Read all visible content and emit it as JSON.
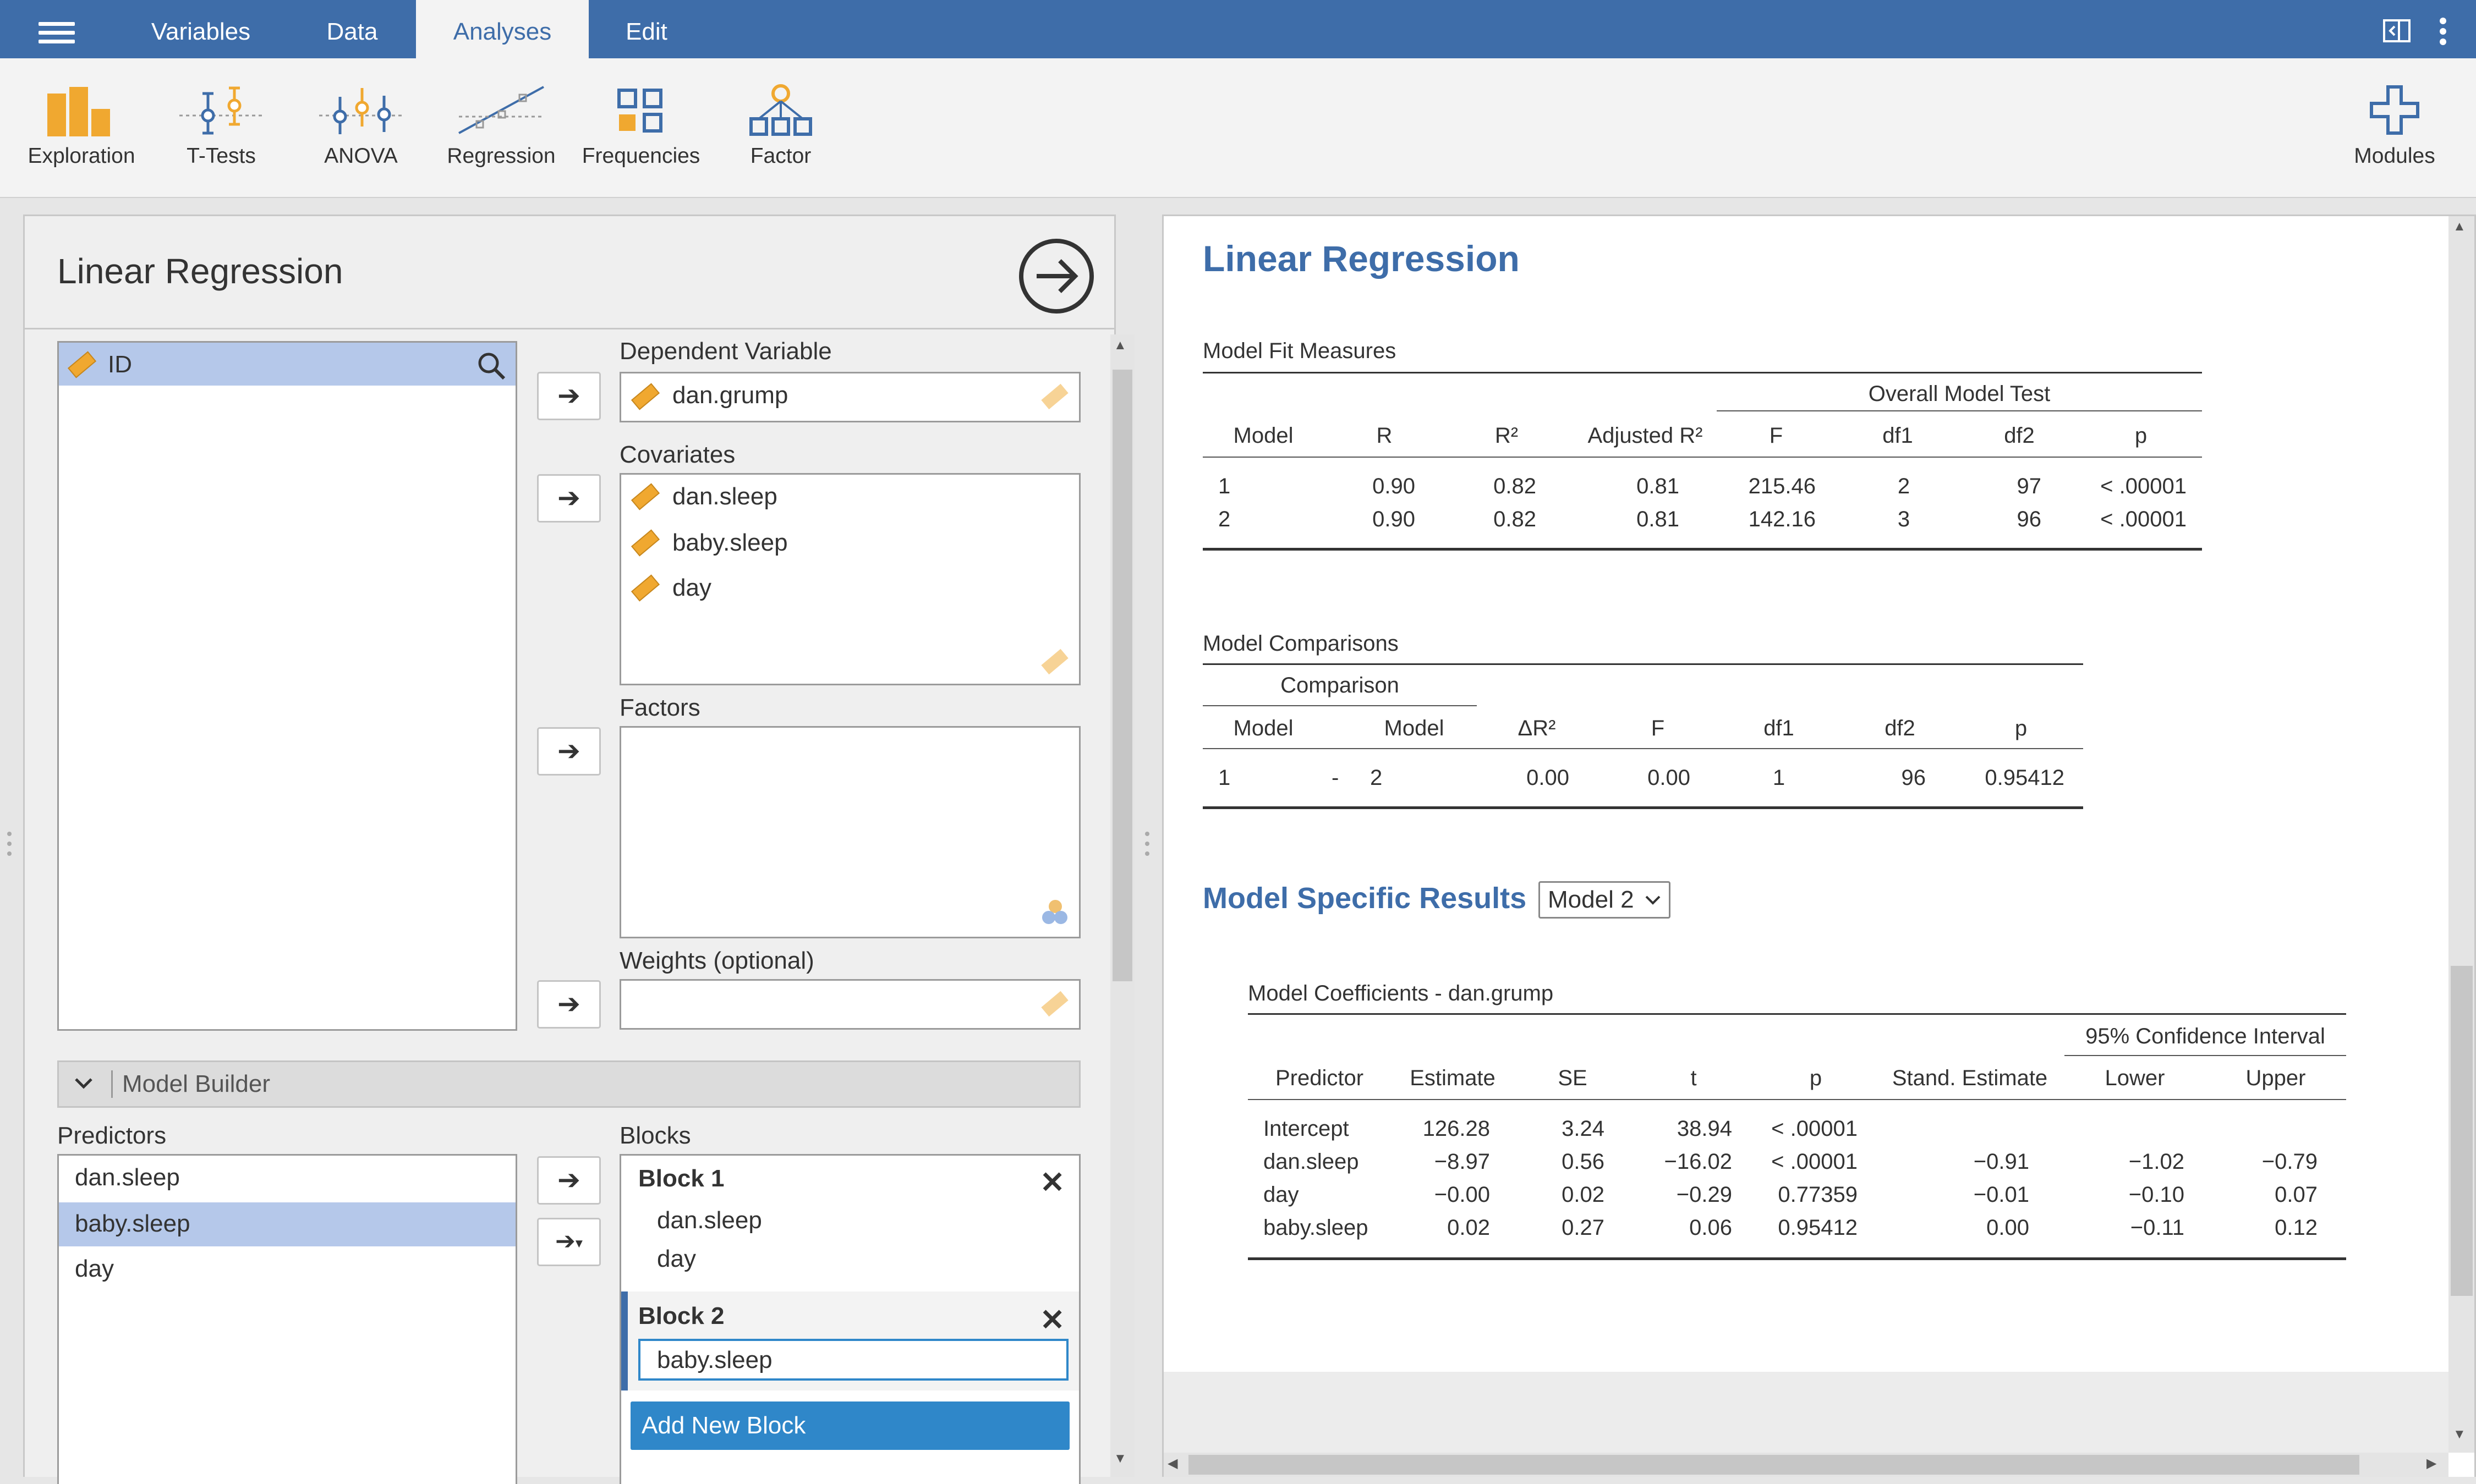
{
  "nav": {
    "tabs": [
      {
        "label": "Variables"
      },
      {
        "label": "Data"
      },
      {
        "label": "Analyses"
      },
      {
        "label": "Edit"
      }
    ]
  },
  "ribbon": {
    "items": [
      {
        "label": "Exploration",
        "icon": "exploration-icon"
      },
      {
        "label": "T-Tests",
        "icon": "t-tests-icon"
      },
      {
        "label": "ANOVA",
        "icon": "anova-icon"
      },
      {
        "label": "Regression",
        "icon": "regression-icon"
      },
      {
        "label": "Frequencies",
        "icon": "frequencies-icon"
      },
      {
        "label": "Factor",
        "icon": "factor-icon"
      }
    ],
    "modules_label": "Modules"
  },
  "options": {
    "title": "Linear Regression",
    "variables": [
      "ID"
    ],
    "dependent_label": "Dependent Variable",
    "dependent_value": "dan.grump",
    "covariates_label": "Covariates",
    "covariates": [
      "dan.sleep",
      "baby.sleep",
      "day"
    ],
    "factors_label": "Factors",
    "weights_label": "Weights (optional)",
    "model_builder_label": "Model Builder",
    "predictors_label": "Predictors",
    "predictors": [
      "dan.sleep",
      "baby.sleep",
      "day"
    ],
    "blocks_label": "Blocks",
    "block1_title": "Block 1",
    "block1_items": [
      "dan.sleep",
      "day"
    ],
    "block2_title": "Block 2",
    "block2_items": [
      "baby.sleep"
    ],
    "add_block_label": "Add New Block"
  },
  "results": {
    "title": "Linear Regression",
    "fit": {
      "caption": "Model Fit Measures",
      "group_header": "Overall Model Test",
      "headers": [
        "Model",
        "R",
        "R²",
        "Adjusted R²",
        "F",
        "df1",
        "df2",
        "p"
      ],
      "rows": [
        [
          "1",
          "0.90",
          "0.82",
          "0.81",
          "215.46",
          "2",
          "97",
          "< .00001"
        ],
        [
          "2",
          "0.90",
          "0.82",
          "0.81",
          "142.16",
          "3",
          "96",
          "< .00001"
        ]
      ]
    },
    "comp": {
      "caption": "Model Comparisons",
      "group_header": "Comparison",
      "headers": [
        "Model",
        "Model",
        "ΔR²",
        "F",
        "df1",
        "df2",
        "p"
      ],
      "row": [
        "1",
        "-",
        "2",
        "0.00",
        "0.00",
        "1",
        "96",
        "0.95412"
      ]
    },
    "specific_title": "Model Specific Results",
    "model_select": "Model 2",
    "coef": {
      "caption": "Model Coefficients - dan.grump",
      "group_header": "95% Confidence Interval",
      "headers": [
        "Predictor",
        "Estimate",
        "SE",
        "t",
        "p",
        "Stand. Estimate",
        "Lower",
        "Upper"
      ],
      "rows": [
        [
          "Intercept",
          "126.28",
          "3.24",
          "38.94",
          "< .00001",
          "",
          "",
          ""
        ],
        [
          "dan.sleep",
          "−8.97",
          "0.56",
          "−16.02",
          "< .00001",
          "−0.91",
          "−1.02",
          "−0.79"
        ],
        [
          "day",
          "−0.00",
          "0.02",
          "−0.29",
          "0.77359",
          "−0.01",
          "−0.10",
          "0.07"
        ],
        [
          "baby.sleep",
          "0.02",
          "0.27",
          "0.06",
          "0.95412",
          "0.00",
          "−0.11",
          "0.12"
        ]
      ]
    }
  },
  "colors": {
    "accent": "#3e6da9",
    "selection": "#b5c8ea",
    "button": "#2f87c9",
    "variable_icon": "#f0a830"
  }
}
